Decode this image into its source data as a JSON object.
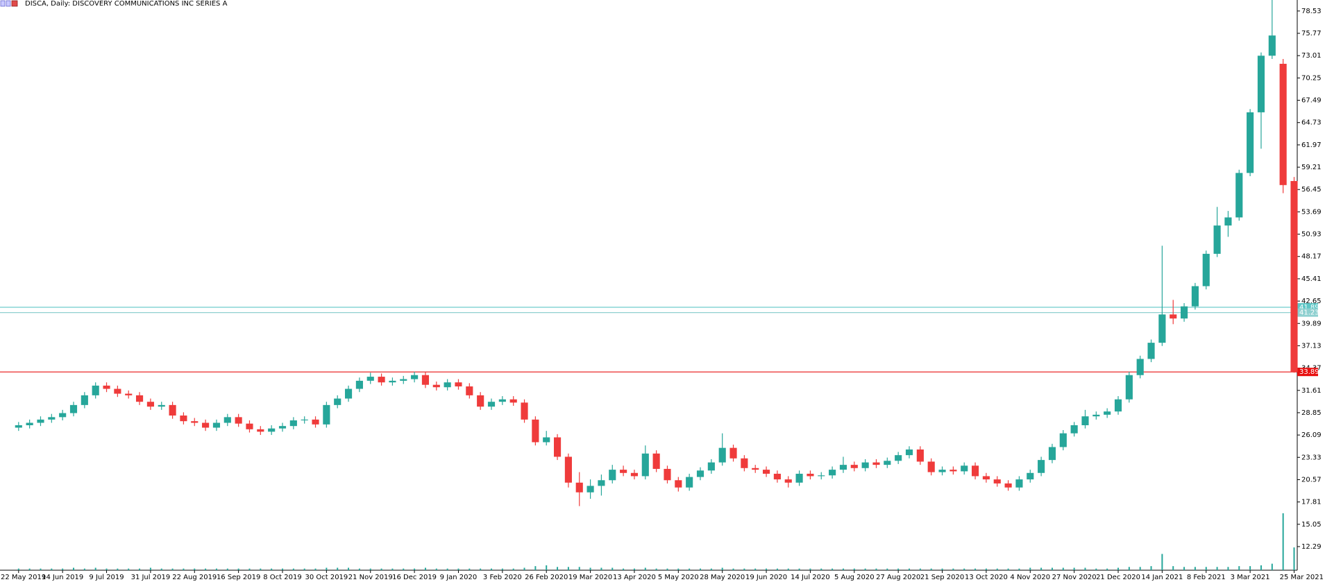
{
  "chart_data": {
    "type": "candlestick",
    "title": "DISCA, Daily:  DISCOVERY COMMUNICATIONS INC SERIES A",
    "categories": [
      "22 May 2019",
      null,
      null,
      null,
      "14 Jun 2019",
      null,
      null,
      null,
      "9 Jul 2019",
      null,
      null,
      null,
      "31 Jul 2019",
      null,
      null,
      null,
      "22 Aug 2019",
      null,
      null,
      null,
      "16 Sep 2019",
      null,
      null,
      null,
      "8 Oct 2019",
      null,
      null,
      null,
      "30 Oct 2019",
      null,
      null,
      null,
      "21 Nov 2019",
      null,
      null,
      null,
      "16 Dec 2019",
      null,
      null,
      null,
      "9 Jan 2020",
      null,
      null,
      null,
      "3 Feb 2020",
      null,
      null,
      null,
      "26 Feb 2020",
      null,
      null,
      null,
      "19 Mar 2020",
      null,
      null,
      null,
      "13 Apr 2020",
      null,
      null,
      null,
      "5 May 2020",
      null,
      null,
      null,
      "28 May 2020",
      null,
      null,
      null,
      "19 Jun 2020",
      null,
      null,
      null,
      "14 Jul 2020",
      null,
      null,
      null,
      "5 Aug 2020",
      null,
      null,
      null,
      "27 Aug 2020",
      null,
      null,
      null,
      "21 Sep 2020",
      null,
      null,
      null,
      "13 Oct 2020",
      null,
      null,
      null,
      "4 Nov 2020",
      null,
      null,
      null,
      "27 Nov 2020",
      null,
      null,
      null,
      "21 Dec 2020",
      null,
      null,
      null,
      "14 Jan 2021",
      null,
      null,
      null,
      "8 Feb 2021",
      null,
      null,
      null,
      "3 Mar 2021",
      null,
      null,
      null,
      "25 Mar 2021"
    ],
    "open": [
      27.0,
      27.3,
      27.6,
      28.0,
      28.3,
      28.8,
      29.8,
      31.0,
      32.2,
      31.8,
      31.2,
      31.0,
      30.2,
      29.6,
      29.8,
      28.5,
      27.8,
      27.6,
      27.0,
      27.6,
      28.3,
      27.5,
      26.8,
      26.5,
      26.9,
      27.2,
      27.9,
      28.0,
      27.4,
      29.8,
      30.6,
      31.8,
      32.8,
      33.3,
      32.6,
      32.8,
      33.0,
      33.5,
      32.3,
      32.0,
      32.6,
      32.1,
      31.0,
      29.6,
      30.2,
      30.5,
      30.1,
      28.0,
      25.2,
      25.8,
      23.4,
      20.2,
      19.0,
      19.8,
      20.5,
      21.8,
      21.4,
      21.0,
      23.8,
      21.9,
      20.5,
      19.6,
      20.9,
      21.7,
      22.7,
      24.5,
      23.2,
      22.0,
      21.8,
      21.3,
      20.6,
      20.2,
      21.3,
      21.0,
      21.1,
      21.8,
      22.4,
      22.0,
      22.7,
      22.4,
      22.9,
      23.6,
      24.3,
      22.8,
      21.5,
      21.8,
      21.6,
      22.3,
      21.0,
      20.6,
      20.1,
      19.6,
      20.6,
      21.4,
      23.0,
      24.6,
      26.3,
      27.3,
      28.4,
      28.6,
      29.0,
      30.5,
      33.5,
      35.5,
      37.5,
      41.0,
      40.5,
      42.0,
      44.5,
      48.5,
      52.0,
      53.0,
      58.5,
      66.0,
      73.0,
      72.0,
      57.5
    ],
    "high": [
      27.7,
      28.0,
      28.4,
      28.7,
      29.2,
      30.2,
      31.4,
      32.6,
      32.6,
      32.2,
      31.6,
      31.4,
      30.6,
      30.2,
      30.2,
      28.9,
      28.2,
      28.0,
      28.0,
      28.7,
      28.7,
      27.9,
      27.2,
      27.3,
      27.6,
      28.3,
      28.4,
      28.4,
      30.2,
      31.0,
      32.2,
      33.2,
      33.8,
      33.7,
      33.2,
      33.4,
      33.9,
      33.9,
      32.7,
      33.0,
      33.0,
      32.5,
      31.4,
      30.6,
      30.9,
      30.9,
      30.5,
      28.4,
      26.6,
      26.2,
      23.8,
      21.5,
      20.6,
      21.2,
      22.4,
      22.3,
      21.8,
      24.8,
      24.2,
      22.3,
      20.9,
      21.3,
      22.1,
      23.1,
      26.3,
      24.9,
      23.6,
      22.4,
      22.2,
      21.7,
      21.0,
      21.7,
      21.7,
      21.5,
      22.2,
      23.4,
      22.8,
      23.1,
      23.1,
      23.3,
      24.0,
      24.7,
      24.7,
      23.2,
      22.2,
      22.2,
      22.7,
      22.7,
      21.4,
      21.0,
      20.5,
      21.0,
      21.8,
      23.4,
      25.0,
      26.7,
      27.7,
      29.2,
      29.0,
      29.4,
      30.9,
      33.9,
      35.9,
      37.9,
      49.5,
      42.8,
      42.4,
      44.9,
      48.9,
      54.3,
      53.8,
      58.9,
      66.4,
      73.4,
      79.9,
      72.6,
      58.0
    ],
    "low": [
      26.6,
      26.9,
      27.2,
      27.6,
      27.9,
      28.4,
      29.4,
      30.6,
      31.4,
      30.8,
      30.6,
      29.8,
      29.2,
      29.2,
      28.1,
      27.4,
      27.2,
      26.6,
      26.6,
      27.2,
      27.1,
      26.4,
      26.1,
      26.1,
      26.5,
      26.8,
      27.5,
      27.0,
      27.0,
      29.4,
      30.2,
      31.4,
      32.4,
      32.2,
      32.2,
      32.4,
      32.6,
      31.9,
      31.6,
      31.6,
      31.7,
      30.6,
      29.2,
      29.2,
      29.8,
      29.7,
      27.6,
      24.8,
      24.8,
      23.0,
      19.6,
      17.3,
      18.2,
      18.6,
      20.1,
      21.0,
      20.6,
      20.6,
      21.5,
      20.1,
      19.1,
      19.2,
      20.5,
      21.3,
      22.3,
      22.8,
      21.6,
      21.4,
      20.9,
      20.2,
      19.6,
      19.8,
      20.6,
      20.6,
      20.7,
      21.4,
      21.6,
      21.6,
      22.0,
      22.0,
      22.5,
      23.2,
      22.4,
      21.1,
      21.1,
      21.2,
      21.2,
      20.6,
      20.2,
      19.7,
      19.2,
      19.2,
      20.2,
      21.0,
      22.6,
      24.2,
      25.9,
      26.9,
      28.0,
      28.2,
      28.6,
      30.1,
      33.1,
      35.1,
      37.1,
      39.8,
      40.1,
      41.6,
      44.1,
      48.1,
      50.6,
      52.6,
      58.1,
      61.5,
      72.6,
      56.0,
      33.8
    ],
    "close": [
      27.3,
      27.6,
      28.0,
      28.3,
      28.8,
      29.8,
      31.0,
      32.2,
      31.8,
      31.2,
      31.0,
      30.2,
      29.6,
      29.8,
      28.5,
      27.8,
      27.6,
      27.0,
      27.6,
      28.3,
      27.5,
      26.8,
      26.5,
      26.9,
      27.2,
      27.9,
      28.0,
      27.4,
      29.8,
      30.6,
      31.8,
      32.8,
      33.3,
      32.6,
      32.8,
      33.0,
      33.5,
      32.3,
      32.0,
      32.6,
      32.1,
      31.0,
      29.6,
      30.2,
      30.5,
      30.1,
      28.0,
      25.2,
      25.8,
      23.4,
      20.2,
      19.0,
      19.8,
      20.5,
      21.8,
      21.4,
      21.0,
      23.8,
      21.9,
      20.5,
      19.6,
      20.9,
      21.7,
      22.7,
      24.5,
      23.2,
      22.0,
      21.8,
      21.3,
      20.6,
      20.2,
      21.3,
      21.0,
      21.1,
      21.8,
      22.4,
      22.0,
      22.7,
      22.4,
      22.9,
      23.6,
      24.3,
      22.8,
      21.5,
      21.8,
      21.6,
      22.3,
      21.0,
      20.6,
      20.1,
      19.6,
      20.6,
      21.4,
      23.0,
      24.6,
      26.3,
      27.3,
      28.4,
      28.6,
      29.0,
      30.5,
      33.5,
      35.5,
      37.5,
      41.0,
      40.5,
      42.0,
      44.5,
      48.5,
      52.0,
      53.0,
      58.5,
      66.0,
      73.0,
      75.5,
      57.0,
      33.89
    ],
    "volume": [
      2,
      2,
      2,
      2,
      2,
      3,
      2,
      3,
      2,
      2,
      2,
      2,
      3,
      2,
      2,
      2,
      2,
      2,
      2,
      2,
      2,
      2,
      2,
      2,
      2,
      2,
      2,
      2,
      3,
      3,
      3,
      2,
      2,
      2,
      2,
      2,
      2,
      3,
      2,
      2,
      2,
      2,
      2,
      2,
      2,
      2,
      3,
      5,
      6,
      4,
      4,
      4,
      3,
      3,
      3,
      2,
      2,
      3,
      2,
      2,
      2,
      2,
      2,
      2,
      3,
      2,
      2,
      2,
      2,
      2,
      2,
      2,
      2,
      2,
      2,
      2,
      2,
      2,
      2,
      2,
      2,
      2,
      2,
      2,
      2,
      2,
      2,
      2,
      2,
      2,
      2,
      2,
      3,
      3,
      3,
      3,
      3,
      3,
      2,
      2,
      3,
      4,
      4,
      5,
      20,
      5,
      4,
      4,
      4,
      4,
      4,
      5,
      5,
      6,
      8,
      70,
      28
    ],
    "vlim": [
      0,
      75
    ],
    "bull_color": "#26a69a",
    "bear_color": "#ef3b3b",
    "volume_color": "#26a69a",
    "ylim": [
      9.37,
      79.89
    ],
    "yticks": [
      78.53,
      75.77,
      73.01,
      70.25,
      67.49,
      64.73,
      61.97,
      59.21,
      56.45,
      53.69,
      50.93,
      48.17,
      45.41,
      42.65,
      39.89,
      37.13,
      34.37,
      31.61,
      28.85,
      26.09,
      23.33,
      20.57,
      17.81,
      15.05,
      12.29
    ],
    "hlines": [
      {
        "value": 41.89,
        "color": "#5ec6c6"
      },
      {
        "value": 41.23,
        "color": "#8fd0d0"
      },
      {
        "value": 33.89,
        "color": "#e81010"
      }
    ]
  }
}
